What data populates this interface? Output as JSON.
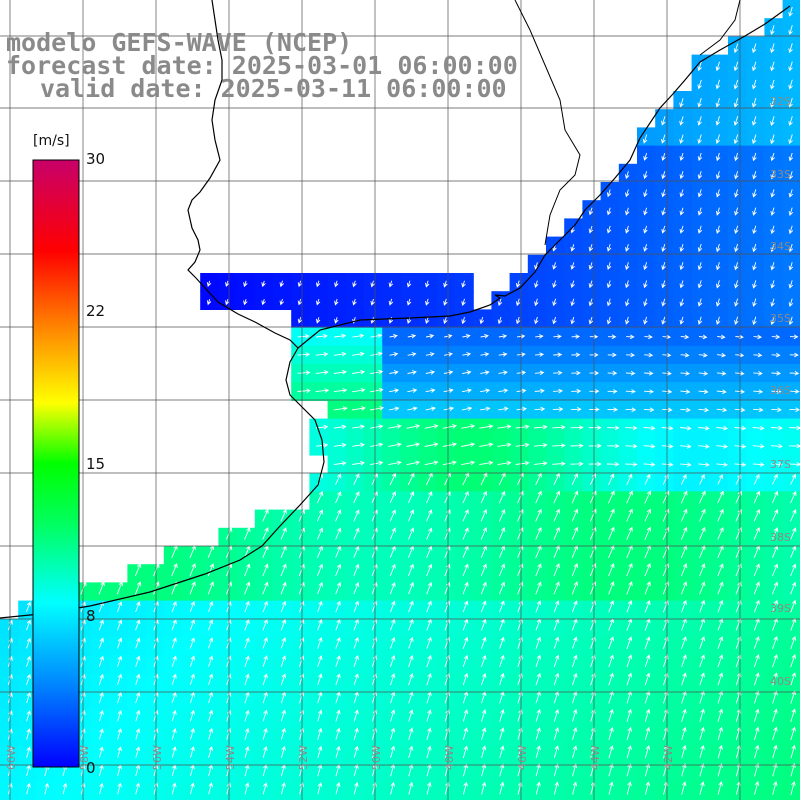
{
  "header": {
    "line1": "modelo GEFS-WAVE (NCEP)",
    "line2": "forecast date: 2025-03-01 06:00:00",
    "line3": "valid date: 2025-03-11 06:00:00"
  },
  "legend": {
    "unit": "[m/s]",
    "ticks": [
      "30",
      "22",
      "15",
      "8",
      "0"
    ],
    "tick_values": [
      30,
      22,
      15,
      8,
      0
    ],
    "range": [
      0,
      30
    ]
  },
  "grid": {
    "lat_labels": [
      "32S",
      "33S",
      "34S",
      "35S",
      "36S",
      "37S",
      "38S",
      "39S",
      "40S"
    ],
    "lon_labels": [
      "60W",
      "58W",
      "56W",
      "54W",
      "52W",
      "50W",
      "48W",
      "46W",
      "44W",
      "42W"
    ]
  },
  "colors": {
    "land": "#ffffff",
    "coast": "#000000",
    "grid": "#505050",
    "label": "#8a8a8a"
  }
}
